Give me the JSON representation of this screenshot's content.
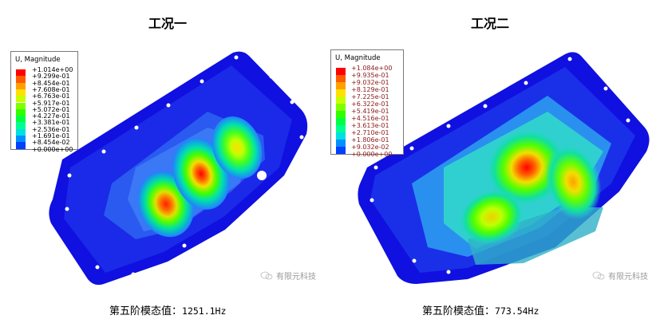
{
  "panels": [
    {
      "title": "工况一",
      "legend": {
        "title": "U, Magnitude",
        "values": [
          "+1.014e+00",
          "+9.299e-01",
          "+8.454e-01",
          "+7.608e-01",
          "+6.763e-01",
          "+5.917e-01",
          "+5.072e-01",
          "+4.227e-01",
          "+3.381e-01",
          "+2.536e-01",
          "+1.691e-01",
          "+8.454e-02",
          "+0.000e+00"
        ],
        "colors": [
          "#ff0000",
          "#ff5a00",
          "#ffa000",
          "#ffe000",
          "#c8ff00",
          "#80ff00",
          "#30ff00",
          "#00ff40",
          "#00ff90",
          "#00e0e0",
          "#0090ff",
          "#0040ff",
          "#0000ff"
        ],
        "text_color": "#000000"
      },
      "caption_label": "第五阶模态值：",
      "caption_value": "1251.1Hz",
      "watermark": "有限元科技"
    },
    {
      "title": "工况二",
      "legend": {
        "title": "U, Magnitude",
        "values": [
          "+1.084e+00",
          "+9.935e-01",
          "+9.032e-01",
          "+8.129e-01",
          "+7.225e-01",
          "+6.322e-01",
          "+5.419e-01",
          "+4.516e-01",
          "+3.613e-01",
          "+2.710e-01",
          "+1.806e-01",
          "+9.032e-02",
          "+0.000e+00"
        ],
        "colors": [
          "#ff0000",
          "#ff5a00",
          "#ffa000",
          "#ffe000",
          "#c8ff00",
          "#80ff00",
          "#30ff00",
          "#00ff40",
          "#00ff90",
          "#00e0e0",
          "#0090ff",
          "#0040ff",
          "#0000ff"
        ],
        "text_color": "#8b1a1a"
      },
      "caption_label": "第五阶模态值：",
      "caption_value": "773.54Hz",
      "watermark": "有限元科技"
    }
  ]
}
